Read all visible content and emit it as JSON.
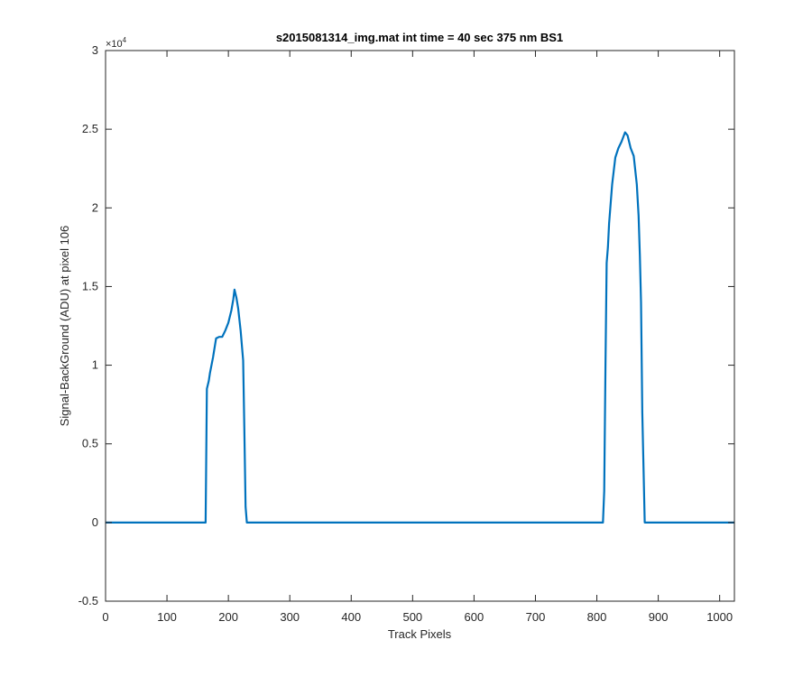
{
  "chart_data": {
    "type": "line",
    "title": "s2015081314_img.mat int time = 40 sec  375 nm BS1",
    "xlabel": "Track Pixels",
    "ylabel": "Signal-BackGround (ADU) at pixel 106",
    "y_exponent_base": "×10",
    "y_exponent_power": "4",
    "xlim": [
      0,
      1024
    ],
    "ylim": [
      -0.5,
      3
    ],
    "y_scale_factor": 10000,
    "x_ticks": [
      0,
      100,
      200,
      300,
      400,
      500,
      600,
      700,
      800,
      900,
      1000
    ],
    "x_tick_labels": [
      "0",
      "100",
      "200",
      "300",
      "400",
      "500",
      "600",
      "700",
      "800",
      "900",
      "1000"
    ],
    "y_ticks": [
      -0.5,
      0,
      0.5,
      1,
      1.5,
      2,
      2.5,
      3
    ],
    "y_tick_labels": [
      "-0.5",
      "0",
      "0.5",
      "1",
      "1.5",
      "2",
      "2.5",
      "3"
    ],
    "grid": false,
    "line_color": "#0072BD",
    "series": [
      {
        "x": [
          0,
          50,
          100,
          150,
          160,
          163,
          165,
          168,
          170,
          175,
          180,
          185,
          190,
          195,
          200,
          205,
          208,
          210,
          213,
          216,
          220,
          224,
          226,
          228,
          230,
          240,
          300,
          400,
          500,
          600,
          700,
          800,
          810,
          812,
          814,
          816,
          818,
          820,
          825,
          830,
          835,
          840,
          843,
          846,
          850,
          855,
          860,
          865,
          868,
          870,
          872,
          874,
          878,
          880,
          900,
          950,
          1000,
          1024
        ],
        "y": [
          0.0,
          0.0,
          0.0,
          0.0,
          0.0,
          0.0,
          0.85,
          0.9,
          0.95,
          1.05,
          1.17,
          1.18,
          1.18,
          1.22,
          1.27,
          1.35,
          1.42,
          1.48,
          1.43,
          1.36,
          1.22,
          1.03,
          0.6,
          0.1,
          0.0,
          0.0,
          0.0,
          0.0,
          0.0,
          0.0,
          0.0,
          0.0,
          0.0,
          0.2,
          1.0,
          1.65,
          1.75,
          1.9,
          2.15,
          2.32,
          2.38,
          2.42,
          2.45,
          2.48,
          2.46,
          2.38,
          2.33,
          2.15,
          1.95,
          1.7,
          1.4,
          0.7,
          0.0,
          0.0,
          0.0,
          0.0,
          0.0,
          0.0
        ]
      }
    ]
  }
}
